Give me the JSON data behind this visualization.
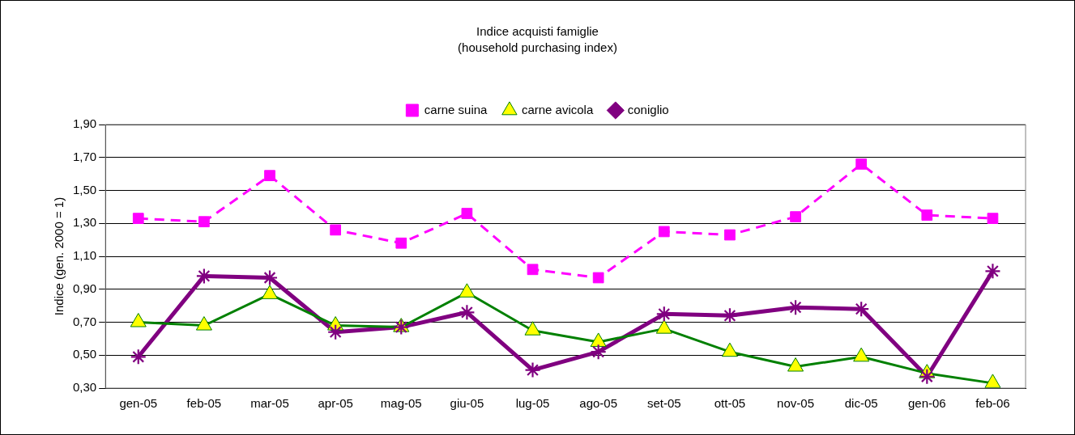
{
  "chart_data": {
    "type": "line",
    "title": "Indice acquisti famiglie",
    "subtitle": "(household purchasing index)",
    "ylabel": "Indice (gen. 2000 = 1)",
    "categories": [
      "gen-05",
      "feb-05",
      "mar-05",
      "apr-05",
      "mag-05",
      "giu-05",
      "lug-05",
      "ago-05",
      "set-05",
      "ott-05",
      "nov-05",
      "dic-05",
      "gen-06",
      "feb-06"
    ],
    "ylim": [
      0.3,
      1.9
    ],
    "yticks": [
      {
        "value": 0.3,
        "label": "0,30"
      },
      {
        "value": 0.5,
        "label": "0,50"
      },
      {
        "value": 0.7,
        "label": "0,70"
      },
      {
        "value": 0.9,
        "label": "0,90"
      },
      {
        "value": 1.1,
        "label": "1,10"
      },
      {
        "value": 1.3,
        "label": "1,30"
      },
      {
        "value": 1.5,
        "label": "1,50"
      },
      {
        "value": 1.7,
        "label": "1,70"
      },
      {
        "value": 1.9,
        "label": "1,90"
      }
    ],
    "grid": "y",
    "legend": "top",
    "series": [
      {
        "name": "carne suina",
        "color": "#ff00ff",
        "marker": "square",
        "line_style": "dashed",
        "values": [
          1.33,
          1.31,
          1.59,
          1.26,
          1.18,
          1.36,
          1.02,
          0.97,
          1.25,
          1.23,
          1.34,
          1.66,
          1.35,
          1.33
        ]
      },
      {
        "name": "carne avicola",
        "color": "#008000",
        "marker": "triangle",
        "line_style": "solid",
        "values": [
          0.7,
          0.68,
          0.87,
          0.68,
          0.67,
          0.88,
          0.65,
          0.58,
          0.66,
          0.52,
          0.43,
          0.49,
          0.39,
          0.33
        ]
      },
      {
        "name": "coniglio",
        "color": "#800080",
        "marker": "star",
        "line_style": "solid",
        "values": [
          0.49,
          0.98,
          0.97,
          0.64,
          0.67,
          0.76,
          0.41,
          0.52,
          0.75,
          0.74,
          0.79,
          0.78,
          0.37,
          1.01
        ]
      }
    ]
  }
}
